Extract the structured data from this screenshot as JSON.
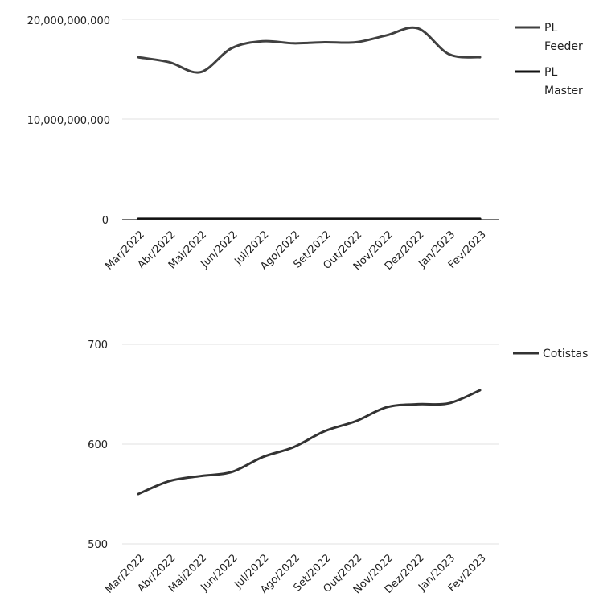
{
  "chart_data": [
    {
      "type": "line",
      "categories": [
        "Mar/2022",
        "Abr/2022",
        "Mai/2022",
        "Jun/2022",
        "Jul/2022",
        "Ago/2022",
        "Set/2022",
        "Out/2022",
        "Nov/2022",
        "Dez/2022",
        "Jan/2023",
        "Fev/2023"
      ],
      "series": [
        {
          "name": "PL Feeder",
          "values": [
            16200000000,
            15700000000,
            14700000000,
            17100000000,
            17800000000,
            17600000000,
            17700000000,
            17700000000,
            18400000000,
            19100000000,
            16500000000,
            16200000000
          ],
          "color": "#404040"
        },
        {
          "name": "PL Master",
          "values": [
            0,
            0,
            0,
            0,
            0,
            0,
            0,
            0,
            0,
            0,
            0,
            0
          ],
          "color": "#111111"
        }
      ],
      "y_ticks": [
        "20,000,000,000",
        "10,000,000,000",
        "0"
      ],
      "ylim": [
        0,
        20000000000
      ],
      "grid": true,
      "legend": "right"
    },
    {
      "type": "line",
      "categories": [
        "Mar/2022",
        "Abr/2022",
        "Mai/2022",
        "Jun/2022",
        "Jul/2022",
        "Ago/2022",
        "Set/2022",
        "Out/2022",
        "Nov/2022",
        "Dez/2022",
        "Jan/2023",
        "Fev/2023"
      ],
      "series": [
        {
          "name": "Cotistas",
          "values": [
            550,
            563,
            568,
            572,
            587,
            597,
            613,
            623,
            637,
            640,
            641,
            654
          ],
          "color": "#333333"
        }
      ],
      "y_ticks": [
        "700",
        "600",
        "500"
      ],
      "ylim": [
        500,
        700
      ],
      "grid": true,
      "legend": "right"
    }
  ]
}
